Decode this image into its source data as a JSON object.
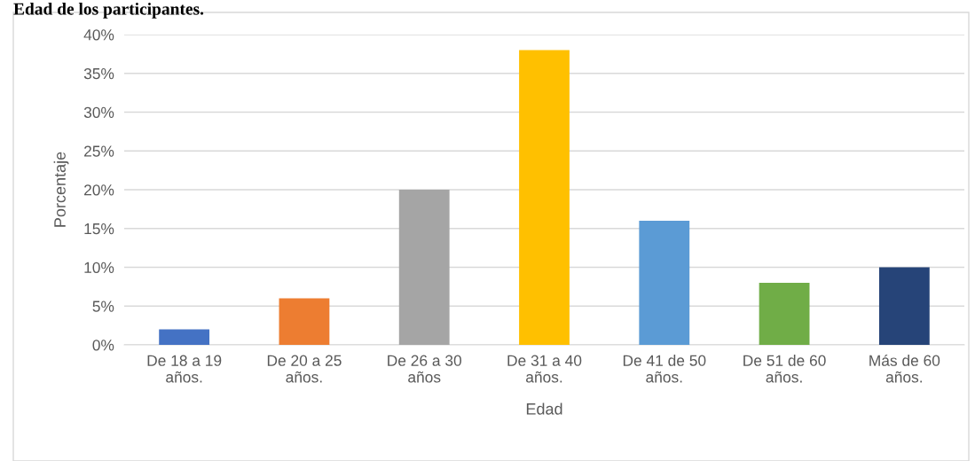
{
  "chart_data": {
    "type": "bar",
    "title": "Edad de los participantes.",
    "xlabel": "Edad",
    "ylabel": "Porcentaje",
    "categories": [
      "De 18 a 19\naños.",
      "De 20 a 25\naños.",
      "De 26 a 30\naños",
      "De 31 a 40\naños.",
      "De 41 de 50\naños.",
      "De 51 de 60\naños.",
      "Más de 60\naños."
    ],
    "values": [
      2,
      6,
      20,
      38,
      16,
      8,
      10
    ],
    "colors": [
      "#4472c4",
      "#ed7d31",
      "#a5a5a5",
      "#ffc000",
      "#5b9bd5",
      "#70ad47",
      "#264478"
    ],
    "ylim": [
      0,
      40
    ],
    "yticks": [
      {
        "value": 0,
        "label": "0%"
      },
      {
        "value": 5,
        "label": "5%"
      },
      {
        "value": 10,
        "label": "10%"
      },
      {
        "value": 15,
        "label": "15%"
      },
      {
        "value": 20,
        "label": "20%"
      },
      {
        "value": 25,
        "label": "25%"
      },
      {
        "value": 30,
        "label": "30%"
      },
      {
        "value": 35,
        "label": "35%"
      },
      {
        "value": 40,
        "label": "40%"
      }
    ],
    "grid": "y",
    "legend": false
  }
}
